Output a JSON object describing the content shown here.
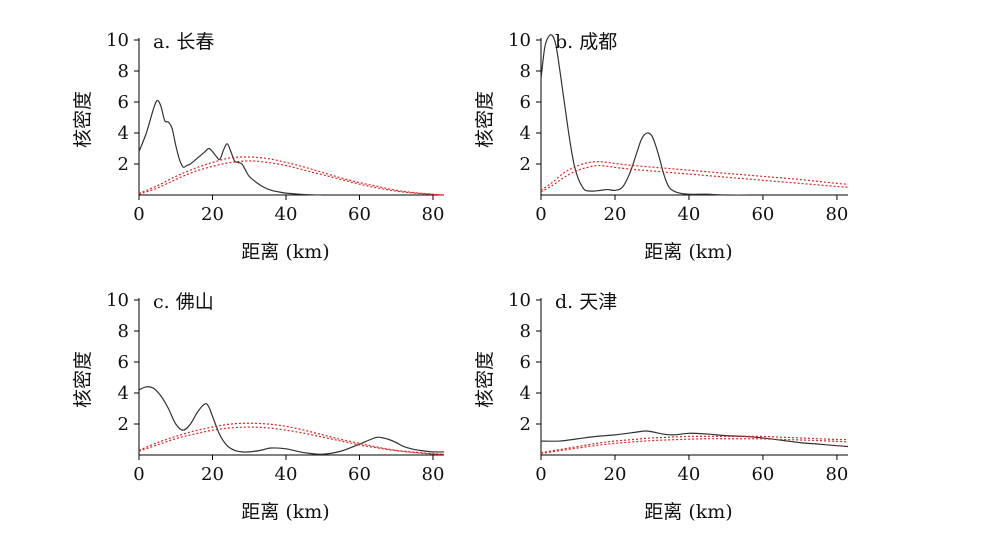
{
  "chart_data": [
    {
      "type": "line",
      "title": "a. 长春",
      "xlabel": "距离 (km)",
      "ylabel": "核密度",
      "xlim": [
        0,
        83
      ],
      "ylim": [
        0,
        10
      ],
      "xticks": [
        "0",
        "20",
        "40",
        "60",
        "80"
      ],
      "yticks": [
        "2",
        "4",
        "6",
        "8",
        "10"
      ],
      "series": [
        {
          "color": "#333333",
          "style": "solid",
          "x": [
            0,
            2,
            4,
            5,
            6,
            7,
            8,
            9,
            10,
            11,
            12,
            13,
            14,
            15,
            16,
            17,
            18,
            19,
            20,
            21,
            22,
            23,
            24,
            25,
            26,
            27,
            28,
            29,
            30,
            32,
            34,
            36,
            38,
            40,
            43,
            46,
            50
          ],
          "y": [
            2.8,
            4.0,
            5.6,
            6.1,
            5.7,
            4.8,
            4.7,
            4.3,
            3.2,
            2.3,
            1.8,
            1.9,
            2.0,
            2.2,
            2.4,
            2.6,
            2.8,
            3.0,
            2.8,
            2.5,
            2.3,
            2.9,
            3.3,
            2.8,
            2.2,
            2.1,
            2.0,
            1.6,
            1.2,
            0.8,
            0.5,
            0.3,
            0.2,
            0.12,
            0.06,
            0.02,
            0.0
          ]
        },
        {
          "color": "#d62728",
          "style": "dotted",
          "x": [
            0,
            5,
            10,
            15,
            20,
            25,
            30,
            35,
            40,
            45,
            50,
            55,
            60,
            65,
            70,
            75,
            80,
            83
          ],
          "y": [
            0.1,
            0.6,
            1.2,
            1.7,
            2.1,
            2.4,
            2.45,
            2.35,
            2.1,
            1.8,
            1.45,
            1.1,
            0.8,
            0.55,
            0.3,
            0.15,
            0.05,
            0.0
          ]
        },
        {
          "color": "#d62728",
          "style": "dotted",
          "x": [
            0,
            5,
            10,
            15,
            20,
            25,
            30,
            35,
            40,
            45,
            50,
            55,
            60,
            65,
            70,
            75,
            80,
            83
          ],
          "y": [
            0.05,
            0.45,
            1.0,
            1.5,
            1.85,
            2.1,
            2.2,
            2.1,
            1.9,
            1.6,
            1.3,
            1.0,
            0.7,
            0.45,
            0.25,
            0.12,
            0.04,
            0.0
          ]
        }
      ]
    },
    {
      "type": "line",
      "title": "b. 成都",
      "xlabel": "距离 (km)",
      "ylabel": "核密度",
      "xlim": [
        0,
        83
      ],
      "ylim": [
        0,
        10
      ],
      "xticks": [
        "0",
        "20",
        "40",
        "60",
        "80"
      ],
      "yticks": [
        "2",
        "4",
        "6",
        "8",
        "10"
      ],
      "series": [
        {
          "color": "#333333",
          "style": "solid",
          "x": [
            0,
            1,
            2,
            3,
            4,
            5,
            6,
            7,
            8,
            9,
            10,
            11,
            12,
            14,
            16,
            18,
            20,
            22,
            24,
            26,
            27,
            28,
            29,
            30,
            31,
            32,
            33,
            34,
            35,
            37,
            40,
            45,
            50,
            60,
            70,
            80,
            83
          ],
          "y": [
            7.5,
            9.5,
            10.2,
            10.3,
            9.7,
            8.2,
            6.5,
            4.8,
            3.2,
            1.9,
            1.1,
            0.6,
            0.3,
            0.25,
            0.3,
            0.35,
            0.3,
            0.5,
            1.4,
            2.8,
            3.5,
            3.9,
            4.0,
            3.8,
            3.2,
            2.4,
            1.5,
            0.8,
            0.4,
            0.15,
            0.05,
            0.05,
            0.0,
            0.0,
            0.0,
            0.0,
            0.0
          ]
        },
        {
          "color": "#d62728",
          "style": "dotted",
          "x": [
            0,
            3,
            6,
            9,
            12,
            15,
            18,
            21,
            25,
            30,
            35,
            40,
            50,
            60,
            70,
            80,
            83
          ],
          "y": [
            0.3,
            0.8,
            1.4,
            1.8,
            2.05,
            2.15,
            2.1,
            2.0,
            1.9,
            1.8,
            1.7,
            1.6,
            1.4,
            1.2,
            1.0,
            0.75,
            0.7
          ]
        },
        {
          "color": "#d62728",
          "style": "dotted",
          "x": [
            0,
            3,
            6,
            9,
            12,
            15,
            18,
            21,
            25,
            30,
            35,
            40,
            50,
            60,
            70,
            80,
            83
          ],
          "y": [
            0.2,
            0.6,
            1.1,
            1.5,
            1.75,
            1.9,
            1.85,
            1.75,
            1.65,
            1.55,
            1.45,
            1.35,
            1.15,
            0.95,
            0.75,
            0.55,
            0.5
          ]
        }
      ]
    },
    {
      "type": "line",
      "title": "c. 佛山",
      "xlabel": "距离 (km)",
      "ylabel": "核密度",
      "xlim": [
        0,
        83
      ],
      "ylim": [
        0,
        10
      ],
      "xticks": [
        "0",
        "20",
        "40",
        "60",
        "80"
      ],
      "yticks": [
        "2",
        "4",
        "6",
        "8",
        "10"
      ],
      "series": [
        {
          "color": "#333333",
          "style": "solid",
          "x": [
            0,
            2,
            4,
            6,
            8,
            10,
            12,
            14,
            16,
            18,
            19,
            20,
            22,
            24,
            26,
            28,
            30,
            33,
            36,
            40,
            45,
            50,
            55,
            60,
            63,
            65,
            68,
            70,
            72,
            75,
            78,
            80,
            83
          ],
          "y": [
            4.2,
            4.4,
            4.3,
            3.8,
            3.0,
            2.0,
            1.6,
            2.0,
            2.8,
            3.3,
            3.1,
            2.5,
            1.3,
            0.6,
            0.3,
            0.2,
            0.2,
            0.3,
            0.45,
            0.4,
            0.15,
            0.05,
            0.25,
            0.7,
            1.0,
            1.15,
            1.0,
            0.8,
            0.55,
            0.35,
            0.25,
            0.2,
            0.2
          ]
        },
        {
          "color": "#d62728",
          "style": "dotted",
          "x": [
            0,
            5,
            10,
            15,
            20,
            25,
            30,
            35,
            40,
            45,
            50,
            55,
            60,
            65,
            70,
            75,
            80,
            83
          ],
          "y": [
            0.3,
            0.8,
            1.2,
            1.55,
            1.8,
            2.0,
            2.05,
            2.0,
            1.85,
            1.6,
            1.3,
            1.0,
            0.75,
            0.5,
            0.3,
            0.18,
            0.08,
            0.05
          ]
        },
        {
          "color": "#d62728",
          "style": "dotted",
          "x": [
            0,
            5,
            10,
            15,
            20,
            25,
            30,
            35,
            40,
            45,
            50,
            55,
            60,
            65,
            70,
            75,
            80,
            83
          ],
          "y": [
            0.25,
            0.65,
            1.05,
            1.35,
            1.6,
            1.75,
            1.8,
            1.75,
            1.6,
            1.4,
            1.15,
            0.9,
            0.65,
            0.45,
            0.28,
            0.15,
            0.07,
            0.04
          ]
        }
      ]
    },
    {
      "type": "line",
      "title": "d. 天津",
      "xlabel": "距离 (km)",
      "ylabel": "核密度",
      "xlim": [
        0,
        83
      ],
      "ylim": [
        0,
        10
      ],
      "xticks": [
        "0",
        "20",
        "40",
        "60",
        "80"
      ],
      "yticks": [
        "2",
        "4",
        "6",
        "8",
        "10"
      ],
      "series": [
        {
          "color": "#333333",
          "style": "solid",
          "x": [
            0,
            5,
            10,
            15,
            20,
            25,
            28,
            30,
            33,
            36,
            40,
            45,
            50,
            55,
            60,
            65,
            70,
            75,
            80,
            83
          ],
          "y": [
            0.9,
            0.9,
            1.05,
            1.2,
            1.3,
            1.45,
            1.55,
            1.5,
            1.35,
            1.3,
            1.4,
            1.35,
            1.25,
            1.2,
            1.1,
            0.95,
            0.8,
            0.7,
            0.6,
            0.55
          ]
        },
        {
          "color": "#d62728",
          "style": "dotted",
          "x": [
            0,
            5,
            10,
            15,
            20,
            25,
            30,
            35,
            40,
            45,
            50,
            55,
            60,
            65,
            70,
            75,
            80,
            83
          ],
          "y": [
            0.15,
            0.35,
            0.55,
            0.75,
            0.9,
            1.0,
            1.1,
            1.15,
            1.2,
            1.2,
            1.2,
            1.2,
            1.2,
            1.15,
            1.1,
            1.05,
            1.0,
            1.0
          ]
        },
        {
          "color": "#d62728",
          "style": "dotted",
          "x": [
            0,
            5,
            10,
            15,
            20,
            25,
            30,
            35,
            40,
            45,
            50,
            55,
            60,
            65,
            70,
            75,
            80,
            83
          ],
          "y": [
            0.1,
            0.28,
            0.45,
            0.62,
            0.75,
            0.85,
            0.93,
            0.98,
            1.02,
            1.05,
            1.05,
            1.05,
            1.04,
            1.0,
            0.97,
            0.93,
            0.88,
            0.85
          ]
        }
      ]
    }
  ]
}
